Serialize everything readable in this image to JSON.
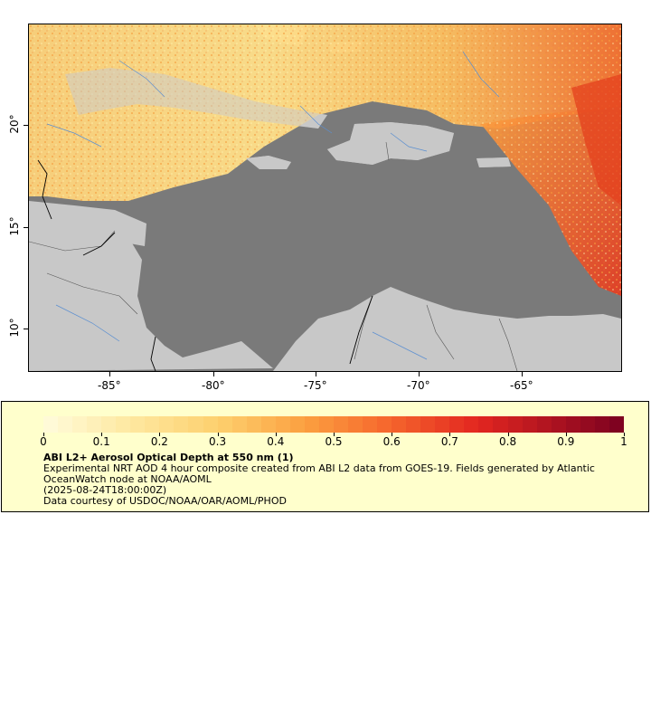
{
  "map": {
    "x_ticks": [
      "-85°",
      "-80°",
      "-75°",
      "-70°",
      "-65°"
    ],
    "y_ticks": [
      "20°",
      "15°",
      "10°"
    ]
  },
  "legend": {
    "colorbar_ticks": [
      "0",
      "0.1",
      "0.2",
      "0.3",
      "0.4",
      "0.5",
      "0.6",
      "0.7",
      "0.8",
      "0.9",
      "1"
    ],
    "colorbar_range": [
      0,
      1
    ],
    "colors": {
      "low": "#fff8d0",
      "mid": "#fba040",
      "high": "#e02020",
      "max": "#7a0020",
      "no_data": "#7a7a7a",
      "land": "#c8c8c8",
      "water_lines": "#5b8fd0"
    },
    "title": "ABI L2+ Aerosol Optical Depth at 550 nm (1)",
    "line1": "Experimental NRT AOD 4 hour composite created from ABI L2 data from GOES-19. Fields generated by Atlantic OceanWatch node at NOAA/AOML",
    "line2": "(2025-08-24T18:00:00Z)",
    "line3": "Data courtesy of USDOC/NOAA/OAR/AOML/PHOD"
  }
}
